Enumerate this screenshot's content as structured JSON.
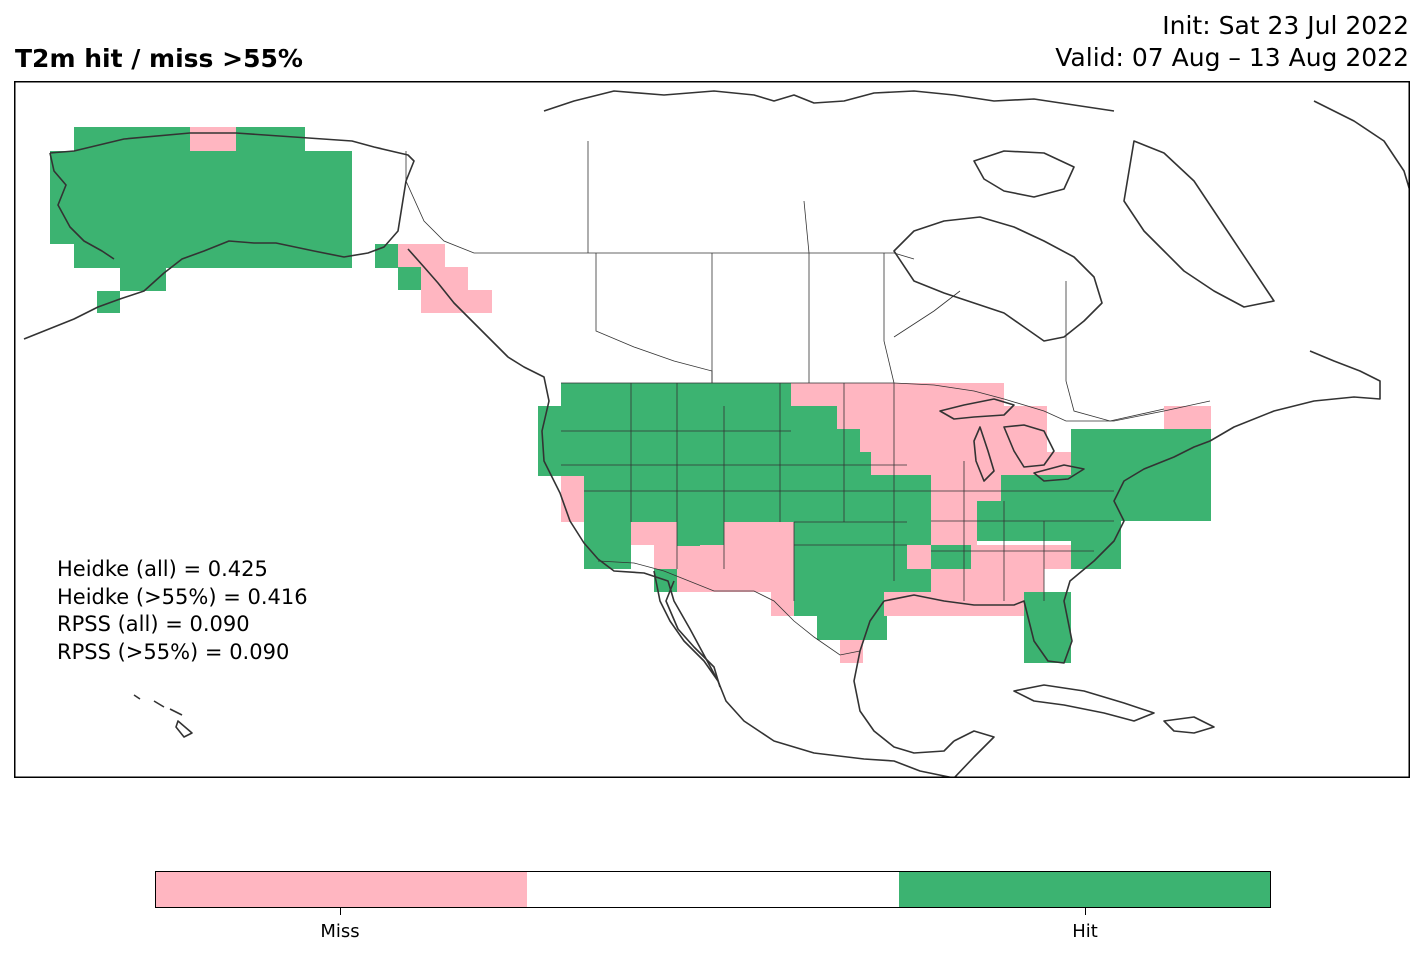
{
  "header": {
    "title": "T2m hit / miss  >55%",
    "init": "Init: Sat 23 Jul 2022",
    "valid": "Valid: 07 Aug – 13 Aug 2022"
  },
  "stats": [
    "Heidke (all) = 0.425",
    "Heidke (>55%) = 0.416",
    "RPSS (all) = 0.090",
    "RPSS (>55%) = 0.090"
  ],
  "legend": {
    "miss_label": "Miss",
    "hit_label": "Hit",
    "colors": {
      "miss": "#ffb6c1",
      "neutral": "#ffffff",
      "hit": "#3cb371"
    }
  },
  "map": {
    "projection": "plate-carree",
    "region": "North America",
    "outline_color": "#333333",
    "categories": [
      "miss",
      "hit"
    ]
  }
}
